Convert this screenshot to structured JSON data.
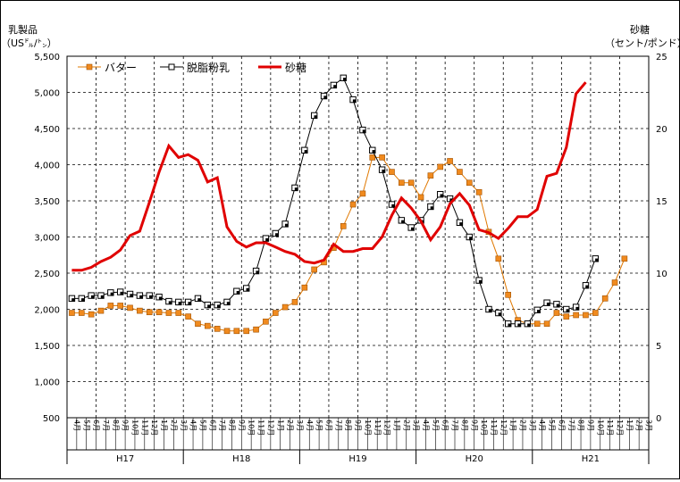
{
  "chart_data": {
    "type": "line",
    "y_left_title": "乳製品",
    "y_left_unit": "（US㌦/㌧）",
    "y_right_title": "砂糖",
    "y_right_unit": "（セント/ポンド）",
    "ylim_left": [
      500,
      5500
    ],
    "ylim_right": [
      0,
      25
    ],
    "yticks_left": [
      "500",
      "1,000",
      "1,500",
      "2,000",
      "2,500",
      "3,000",
      "3,500",
      "4,000",
      "4,500",
      "5,000",
      "5,500"
    ],
    "yticks_right": [
      "0",
      "5",
      "10",
      "15",
      "20",
      "25"
    ],
    "grid": true,
    "legend_position": "top-left",
    "months": [
      "4月",
      "5月",
      "6月",
      "7月",
      "8月",
      "9月",
      "10月",
      "11月",
      "12月",
      "1月",
      "2月",
      "3月",
      "4月",
      "5月",
      "6月",
      "7月",
      "8月",
      "9月",
      "10月",
      "11月",
      "12月",
      "1月",
      "2月",
      "3月",
      "4月",
      "5月",
      "6月",
      "7月",
      "8月",
      "9月",
      "10月",
      "11月",
      "12月",
      "1月",
      "2月",
      "3月",
      "4月",
      "5月",
      "6月",
      "7月",
      "8月",
      "9月",
      "10月",
      "11月",
      "12月",
      "1月",
      "2月",
      "3月",
      "4月",
      "5月",
      "6月",
      "7月",
      "8月",
      "9月",
      "10月",
      "11月",
      "12月",
      "1月",
      "2月",
      "3月"
    ],
    "fiscal_years": [
      "H17",
      "H18",
      "H19",
      "H20",
      "H21"
    ],
    "series": [
      {
        "name": "バター",
        "axis": "left",
        "color": "#e07800",
        "marker": "filled-square",
        "values": [
          1950,
          1950,
          1930,
          1980,
          2050,
          2050,
          2020,
          1980,
          1960,
          1960,
          1950,
          1950,
          1900,
          1800,
          1770,
          1730,
          1700,
          1700,
          1700,
          1720,
          1830,
          1950,
          2030,
          2100,
          2300,
          2550,
          2650,
          2850,
          3150,
          3450,
          3600,
          4100,
          4100,
          3900,
          3750,
          3750,
          3550,
          3850,
          3970,
          4050,
          3900,
          3750,
          3620,
          3070,
          2700,
          2200,
          1850,
          1800,
          1800,
          1800,
          1950,
          1900,
          1920,
          1920,
          1950,
          2150,
          2370,
          2700
        ]
      },
      {
        "name": "脱脂粉乳",
        "axis": "left",
        "color": "#000000",
        "marker": "open-square",
        "values": [
          2150,
          2150,
          2190,
          2190,
          2230,
          2240,
          2210,
          2190,
          2190,
          2170,
          2110,
          2100,
          2100,
          2150,
          2060,
          2060,
          2100,
          2250,
          2290,
          2530,
          2980,
          3050,
          3180,
          3680,
          4200,
          4680,
          4950,
          5100,
          5200,
          4900,
          4480,
          4200,
          3930,
          3450,
          3230,
          3130,
          3230,
          3420,
          3590,
          3530,
          3200,
          3000,
          2400,
          2000,
          1950,
          1800,
          1800,
          1800,
          1990,
          2090,
          2070,
          2000,
          2030,
          2330,
          2700
        ]
      },
      {
        "name": "砂糖",
        "axis": "right",
        "color": "#e00000",
        "marker": "none",
        "values": [
          10.2,
          10.2,
          10.4,
          10.8,
          11.1,
          11.6,
          12.6,
          12.9,
          14.9,
          17.0,
          18.8,
          18.0,
          18.2,
          17.8,
          16.3,
          16.6,
          13.2,
          12.2,
          11.8,
          12.1,
          12.1,
          11.8,
          11.5,
          11.3,
          10.8,
          10.7,
          10.9,
          12.0,
          11.5,
          11.5,
          11.7,
          11.7,
          12.5,
          14.0,
          15.2,
          14.5,
          13.6,
          12.3,
          13.2,
          14.8,
          15.5,
          14.7,
          13.0,
          12.8,
          12.4,
          13.1,
          13.9,
          13.9,
          14.4,
          16.7,
          16.9,
          18.7,
          22.4,
          23.2
        ]
      }
    ]
  }
}
